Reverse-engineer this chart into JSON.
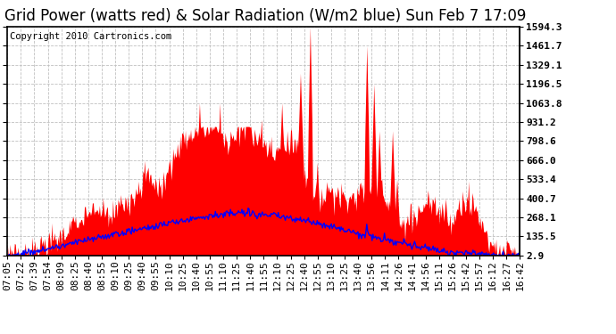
{
  "title": "Grid Power (watts red) & Solar Radiation (W/m2 blue) Sun Feb 7 17:09",
  "copyright": "Copyright 2010 Cartronics.com",
  "yticks": [
    2.9,
    135.5,
    268.1,
    400.7,
    533.4,
    666.0,
    798.6,
    931.2,
    1063.8,
    1196.5,
    1329.1,
    1461.7,
    1594.3
  ],
  "ymin": 2.9,
  "ymax": 1594.3,
  "bg_color": "#ffffff",
  "plot_bg_color": "#ffffff",
  "grid_color": "#c0c0c0",
  "fill_color": "#ff0000",
  "line_color": "#0000ff",
  "title_fontsize": 12,
  "copyright_fontsize": 7.5,
  "tick_fontsize": 8,
  "xtick_labels": [
    "07:05",
    "07:22",
    "07:39",
    "07:54",
    "08:09",
    "08:25",
    "08:40",
    "08:55",
    "09:10",
    "09:25",
    "09:40",
    "09:55",
    "10:10",
    "10:25",
    "10:40",
    "10:55",
    "11:10",
    "11:25",
    "11:40",
    "11:55",
    "12:10",
    "12:25",
    "12:40",
    "12:55",
    "13:10",
    "13:25",
    "13:40",
    "13:56",
    "14:11",
    "14:26",
    "14:41",
    "14:56",
    "15:11",
    "15:26",
    "15:42",
    "15:57",
    "16:12",
    "16:27",
    "16:42"
  ]
}
